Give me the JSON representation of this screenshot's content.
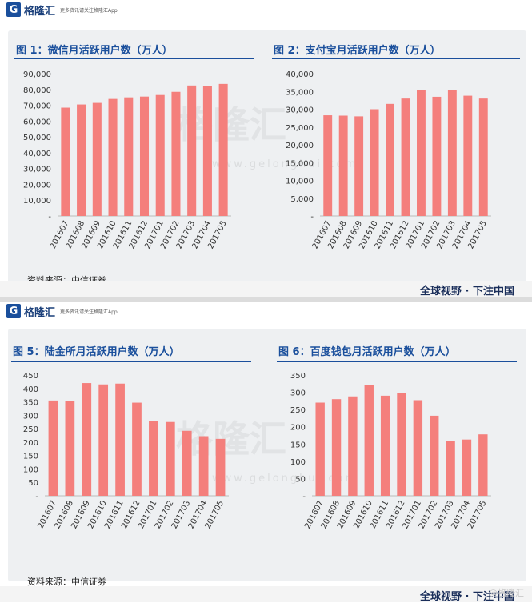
{
  "brand": {
    "logo_glyph": "G",
    "logo_text": "格隆汇",
    "tagline": "更多资讯请关注格隆汇App",
    "slogan": "全球视野 · 下注中国",
    "watermark": "格隆汇",
    "watermark_url": "www.gelonghui.com",
    "corner_watermark": "@格隆汇",
    "color": "#1a4f9c"
  },
  "source_label": "资料来源：中信证券",
  "bar_color": "#f47f7c",
  "chart_data": [
    {
      "type": "bar",
      "title": "图 1：微信月活跃用户数（万人）",
      "categories": [
        "201607",
        "201608",
        "201609",
        "201610",
        "201611",
        "201612",
        "201701",
        "201702",
        "201703",
        "201704",
        "201705"
      ],
      "values": [
        68500,
        70500,
        71500,
        74000,
        75000,
        75500,
        76500,
        78500,
        82500,
        82000,
        83500
      ],
      "ylim": [
        0,
        90000
      ],
      "yticks": [
        "-",
        "10,000",
        "20,000",
        "30,000",
        "40,000",
        "50,000",
        "60,000",
        "70,000",
        "80,000",
        "90,000"
      ]
    },
    {
      "type": "bar",
      "title": "图 2：支付宝月活跃用户数（万人）",
      "categories": [
        "201607",
        "201608",
        "201609",
        "201610",
        "201611",
        "201612",
        "201701",
        "201702",
        "201703",
        "201704",
        "201705"
      ],
      "values": [
        28300,
        28200,
        28000,
        30000,
        31500,
        33000,
        35500,
        33500,
        35300,
        33800,
        33000
      ],
      "ylim": [
        0,
        40000
      ],
      "yticks": [
        "-",
        "5,000",
        "10,000",
        "15,000",
        "20,000",
        "25,000",
        "30,000",
        "35,000",
        "40,000"
      ]
    },
    {
      "type": "bar",
      "title": "图 5：陆金所月活跃用户数（万人）",
      "categories": [
        "201607",
        "201608",
        "201609",
        "201610",
        "201611",
        "201612",
        "201701",
        "201702",
        "201703",
        "201704",
        "201705"
      ],
      "values": [
        355,
        352,
        420,
        415,
        418,
        347,
        278,
        275,
        242,
        222,
        212
      ],
      "ylim": [
        0,
        450
      ],
      "yticks": [
        "-",
        "50",
        "100",
        "150",
        "200",
        "250",
        "300",
        "350",
        "400",
        "450"
      ]
    },
    {
      "type": "bar",
      "title": "图 6：百度钱包月活跃用户数（万人）",
      "categories": [
        "201607",
        "201608",
        "201609",
        "201610",
        "201611",
        "201612",
        "201701",
        "201702",
        "201703",
        "201704",
        "201705"
      ],
      "values": [
        270,
        280,
        288,
        320,
        290,
        297,
        277,
        232,
        158,
        163,
        178
      ],
      "ylim": [
        0,
        350
      ],
      "yticks": [
        "-",
        "50",
        "100",
        "150",
        "200",
        "250",
        "300",
        "350"
      ]
    }
  ]
}
